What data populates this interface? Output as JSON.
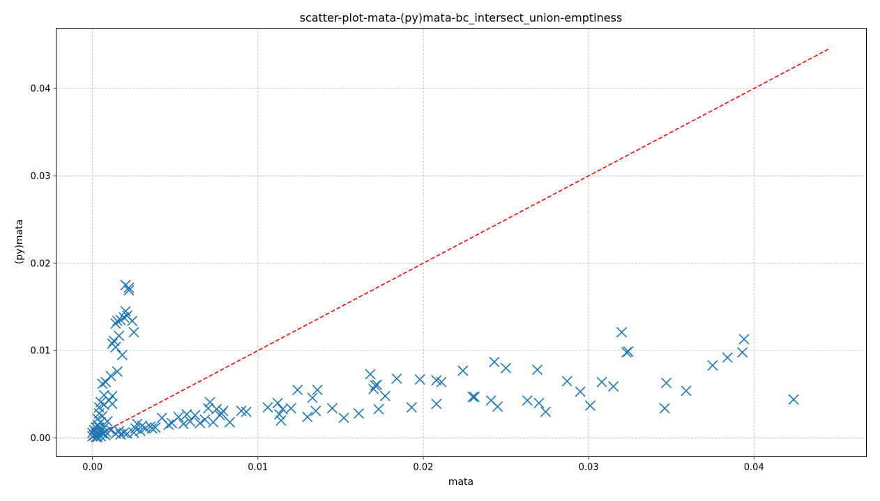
{
  "chart_data": {
    "type": "scatter",
    "title": "scatter-plot-mata-(py)mata-bc_intersect_union-emptiness",
    "xlabel": "mata",
    "ylabel": "(py)mata",
    "xlim": [
      -0.0022,
      0.0468
    ],
    "ylim": [
      -0.00215,
      0.0469
    ],
    "x_ticks": [
      0.0,
      0.01,
      0.02,
      0.03,
      0.04
    ],
    "x_tick_labels": [
      "0.00",
      "0.01",
      "0.02",
      "0.03",
      "0.04"
    ],
    "y_ticks": [
      0.0,
      0.01,
      0.02,
      0.03,
      0.04
    ],
    "y_tick_labels": [
      "0.00",
      "0.01",
      "0.02",
      "0.03",
      "0.04"
    ],
    "grid": true,
    "legend": "none",
    "marker": "x",
    "series_color": "#1f77b4",
    "reference_line": {
      "x": [
        0.0,
        0.0445
      ],
      "y": [
        0.0,
        0.0445
      ],
      "style": "dashed",
      "color": "#ff0000"
    },
    "points": [
      [
        0.0,
        0.0002
      ],
      [
        0.0,
        0.0006
      ],
      [
        0.0001,
        0.0003
      ],
      [
        0.0001,
        0.0009
      ],
      [
        0.0002,
        0.0005
      ],
      [
        0.0002,
        0.0012
      ],
      [
        0.0002,
        0.0001
      ],
      [
        0.0003,
        0.0015
      ],
      [
        0.0003,
        0.0007
      ],
      [
        0.0003,
        0.0022
      ],
      [
        0.0003,
        0.0001
      ],
      [
        0.0004,
        0.0004
      ],
      [
        0.0004,
        0.0028
      ],
      [
        0.0004,
        0.0035
      ],
      [
        0.0004,
        0.0012
      ],
      [
        0.0005,
        0.0018
      ],
      [
        0.0005,
        0.0041
      ],
      [
        0.0005,
        0.0008
      ],
      [
        0.0005,
        0.0002
      ],
      [
        0.0006,
        0.0025
      ],
      [
        0.0006,
        0.0062
      ],
      [
        0.0006,
        0.0005
      ],
      [
        0.0007,
        0.0038
      ],
      [
        0.0007,
        0.0012
      ],
      [
        0.0007,
        0.0049
      ],
      [
        0.0008,
        0.0064
      ],
      [
        0.0008,
        0.0003
      ],
      [
        0.0008,
        0.0007
      ],
      [
        0.0009,
        0.0019
      ],
      [
        0.001,
        0.0043
      ],
      [
        0.0011,
        0.0071
      ],
      [
        0.0011,
        0.0009
      ],
      [
        0.0012,
        0.0048
      ],
      [
        0.0012,
        0.0039
      ],
      [
        0.0012,
        0.0108
      ],
      [
        0.0013,
        0.0111
      ],
      [
        0.0014,
        0.0005
      ],
      [
        0.0014,
        0.0104
      ],
      [
        0.0014,
        0.0131
      ],
      [
        0.0015,
        0.0134
      ],
      [
        0.0015,
        0.0076
      ],
      [
        0.0016,
        0.0117
      ],
      [
        0.0016,
        0.0008
      ],
      [
        0.0017,
        0.0135
      ],
      [
        0.0017,
        0.0004
      ],
      [
        0.0018,
        0.0095
      ],
      [
        0.0019,
        0.0006
      ],
      [
        0.0019,
        0.0138
      ],
      [
        0.002,
        0.0145
      ],
      [
        0.002,
        0.0175
      ],
      [
        0.0021,
        0.0005
      ],
      [
        0.0021,
        0.014
      ],
      [
        0.0022,
        0.0172
      ],
      [
        0.0022,
        0.0169
      ],
      [
        0.0024,
        0.0134
      ],
      [
        0.0025,
        0.0006
      ],
      [
        0.0025,
        0.0121
      ],
      [
        0.0026,
        0.0011
      ],
      [
        0.0027,
        0.0016
      ],
      [
        0.0029,
        0.0008
      ],
      [
        0.003,
        0.0014
      ],
      [
        0.0032,
        0.0011
      ],
      [
        0.0035,
        0.0013
      ],
      [
        0.0036,
        0.0011
      ],
      [
        0.0038,
        0.0012
      ],
      [
        0.0042,
        0.0023
      ],
      [
        0.0046,
        0.0015
      ],
      [
        0.0048,
        0.0017
      ],
      [
        0.0052,
        0.0024
      ],
      [
        0.0055,
        0.0016
      ],
      [
        0.0057,
        0.0027
      ],
      [
        0.0059,
        0.0019
      ],
      [
        0.0062,
        0.0026
      ],
      [
        0.0065,
        0.0017
      ],
      [
        0.0068,
        0.0021
      ],
      [
        0.007,
        0.0034
      ],
      [
        0.0071,
        0.0041
      ],
      [
        0.0073,
        0.0018
      ],
      [
        0.0075,
        0.0033
      ],
      [
        0.0077,
        0.0026
      ],
      [
        0.0078,
        0.0028
      ],
      [
        0.0079,
        0.0031
      ],
      [
        0.0083,
        0.0018
      ],
      [
        0.009,
        0.0031
      ],
      [
        0.0093,
        0.003
      ],
      [
        0.0106,
        0.0035
      ],
      [
        0.0112,
        0.004
      ],
      [
        0.0113,
        0.0027
      ],
      [
        0.0114,
        0.002
      ],
      [
        0.0115,
        0.0033
      ],
      [
        0.012,
        0.0034
      ],
      [
        0.0124,
        0.0055
      ],
      [
        0.013,
        0.0024
      ],
      [
        0.0133,
        0.0046
      ],
      [
        0.0135,
        0.0031
      ],
      [
        0.0136,
        0.0055
      ],
      [
        0.0145,
        0.0034
      ],
      [
        0.0152,
        0.0023
      ],
      [
        0.0161,
        0.0028
      ],
      [
        0.0168,
        0.0073
      ],
      [
        0.017,
        0.0056
      ],
      [
        0.0171,
        0.006
      ],
      [
        0.0172,
        0.0061
      ],
      [
        0.0173,
        0.0033
      ],
      [
        0.0177,
        0.0048
      ],
      [
        0.0184,
        0.0068
      ],
      [
        0.0193,
        0.0035
      ],
      [
        0.0198,
        0.0067
      ],
      [
        0.0208,
        0.0039
      ],
      [
        0.0208,
        0.0066
      ],
      [
        0.0211,
        0.0064
      ],
      [
        0.0224,
        0.0077
      ],
      [
        0.023,
        0.0047
      ],
      [
        0.0231,
        0.0047
      ],
      [
        0.0241,
        0.0043
      ],
      [
        0.0243,
        0.0087
      ],
      [
        0.0245,
        0.0036
      ],
      [
        0.025,
        0.008
      ],
      [
        0.0263,
        0.0043
      ],
      [
        0.0269,
        0.0078
      ],
      [
        0.027,
        0.004
      ],
      [
        0.0274,
        0.003
      ],
      [
        0.0287,
        0.0065
      ],
      [
        0.0295,
        0.0053
      ],
      [
        0.0301,
        0.0037
      ],
      [
        0.0308,
        0.0064
      ],
      [
        0.0315,
        0.0059
      ],
      [
        0.032,
        0.0121
      ],
      [
        0.0323,
        0.0098
      ],
      [
        0.0324,
        0.0099
      ],
      [
        0.0346,
        0.0034
      ],
      [
        0.0347,
        0.0063
      ],
      [
        0.0359,
        0.0054
      ],
      [
        0.0375,
        0.0083
      ],
      [
        0.0384,
        0.0092
      ],
      [
        0.0393,
        0.0098
      ],
      [
        0.0394,
        0.0113
      ],
      [
        0.0424,
        0.0044
      ]
    ]
  }
}
